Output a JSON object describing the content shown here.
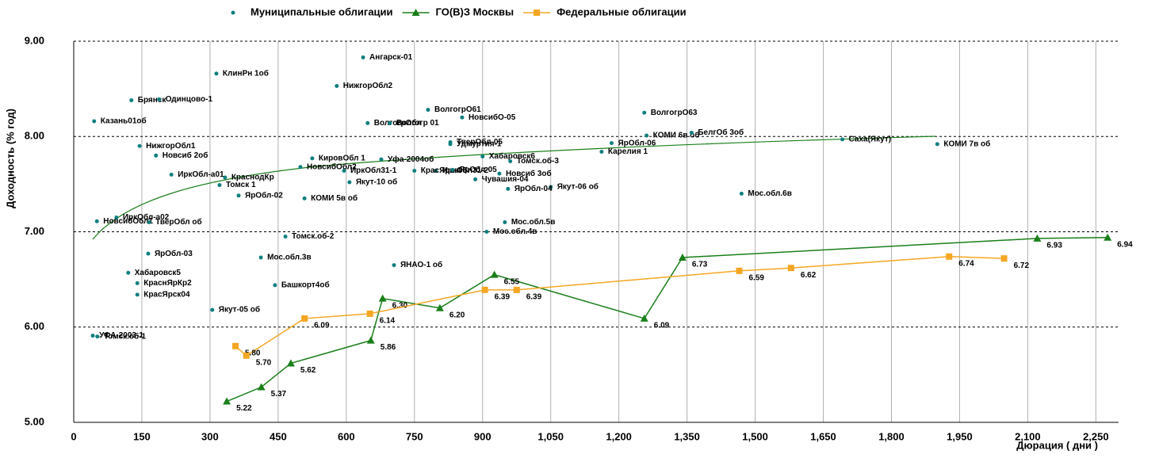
{
  "chart_data": {
    "type": "scatter",
    "xlabel": "Дюрация ( дни )",
    "ylabel": "Доходность (% год)",
    "xlim": [
      0,
      2300
    ],
    "ylim": [
      5,
      9
    ],
    "xticks": [
      0,
      150,
      300,
      450,
      600,
      750,
      900,
      {
        "value": 1050,
        "label": "1,050"
      },
      {
        "value": 1200,
        "label": "1,200"
      },
      {
        "value": 1350,
        "label": "1,350"
      },
      {
        "value": 1500,
        "label": "1,500"
      },
      {
        "value": 1650,
        "label": "1,650"
      },
      {
        "value": 1800,
        "label": "1,800"
      },
      {
        "value": 1950,
        "label": "1,950"
      },
      {
        "value": 2100,
        "label": "2,100"
      },
      {
        "value": 2250,
        "label": "2,250"
      }
    ],
    "yticks": [
      {
        "value": 5,
        "label": "5.00"
      },
      {
        "value": 6,
        "label": "6.00"
      },
      {
        "value": 7,
        "label": "7.00"
      },
      {
        "value": 8,
        "label": "8.00"
      },
      {
        "value": 9,
        "label": "9.00"
      }
    ],
    "grid": true,
    "series": [
      {
        "name": "Муниципальные облигации",
        "type": "scatter",
        "color": "#0f7f7f",
        "x": [
          637,
          314,
          579,
          127,
          188,
          780,
          1256,
          855,
          647,
          696,
          45,
          1261,
          1360,
          829,
          829,
          1692,
          1901,
          145,
          1162,
          1184,
          181,
          900,
          525,
          677,
          961,
          215,
          499,
          797,
          595,
          750,
          834,
          937,
          333,
          884,
          321,
          607,
          1050,
          956,
          1470,
          363,
          508,
          94,
          51,
          166,
          949,
          909,
          466,
          164,
          412,
          705,
          120,
          140,
          443,
          140,
          305,
          42,
          52
        ],
        "values": [
          8.83,
          8.66,
          8.53,
          8.38,
          8.39,
          8.28,
          8.25,
          8.2,
          8.14,
          8.14,
          8.16,
          8.01,
          8.04,
          7.94,
          7.92,
          7.97,
          7.92,
          7.9,
          7.84,
          7.93,
          7.8,
          7.79,
          7.77,
          7.76,
          7.74,
          7.6,
          7.68,
          7.64,
          7.64,
          7.64,
          7.65,
          7.61,
          7.57,
          7.55,
          7.49,
          7.52,
          7.47,
          7.45,
          7.4,
          7.38,
          7.35,
          7.15,
          7.11,
          7.1,
          7.1,
          7,
          6.95,
          6.77,
          6.73,
          6.65,
          6.57,
          6.46,
          6.44,
          6.34,
          6.18,
          5.91,
          5.9
        ],
        "labels": [
          "Ангарск-01",
          "КлинРн 1об",
          "НижгорОбл2",
          "Брянск",
          "Одинцово-1",
          "ВолгогрО61",
          "ВолгогрО63",
          "НовсибО-05",
          "ВолгогрОбл",
          "Волгогр 01",
          "Казань01об",
          "КОМИ 6в об",
          "БелгОб 3об",
          "ТверОбл-05",
          "Удмуртия-1",
          "Саха(Якут)",
          "КОМИ 7в об",
          "НижгорОбл1",
          "Карелия 1",
          "ЯрОбл-06",
          "Новсиб 2об",
          "Хабаровск6",
          "КировОбл 1",
          "Уфа-2004об",
          "Томск.об-3",
          "ИркОбл-а01",
          "НовсибОбл2",
          "ИркОбл31-2",
          "ИркОбл31-1",
          "КрасЯрск05",
          "ЯрОбл-05",
          "Новсиб 3об",
          "КраснодКр",
          "Чувашия-04",
          "Томск 1",
          "Якут-10 об",
          "Якут-06 об",
          "ЯрОбл-04",
          "Мос.обл.6в",
          "ЯрОбл-02",
          "КОМИ 5в об",
          "ИркОбл-а02",
          "НовсибОбл1",
          "ТверОбл об",
          "Мос.обл.5в",
          "Мос.обл.4в",
          "Томск.об-2",
          "ЯрОбл-03",
          "Мос.обл.3в",
          "ЯНАО-1 об",
          "Хабаровск5",
          "КраснЯрКр2",
          "Башкорт4об",
          "КрасЯрск04",
          "Якут-05 об",
          "УФА-2003-1",
          "Томск.об-1"
        ]
      },
      {
        "name": "ГО(В)З Москвы",
        "type": "line",
        "marker": "triangle",
        "color": "#1a7f1a",
        "x": [
          337,
          413,
          478,
          654,
          680,
          806,
          926,
          1256,
          1340,
          2121,
          2276
        ],
        "values": [
          5.22,
          5.37,
          5.62,
          5.86,
          6.3,
          6.2,
          6.55,
          6.09,
          6.73,
          6.93,
          6.94
        ],
        "value_labels": [
          "5.22",
          "5.37",
          "5.62",
          "5.86",
          "6.30",
          "6.20",
          "6.55",
          "6.09",
          "6.73",
          "6.93",
          "6.94"
        ]
      },
      {
        "name": "Федеральные облигации",
        "type": "line",
        "marker": "square",
        "color": "#f5a623",
        "x": [
          356,
          380,
          508,
          652,
          905,
          975,
          1465,
          1579,
          1927,
          2048
        ],
        "values": [
          5.8,
          5.7,
          6.09,
          6.14,
          6.39,
          6.39,
          6.59,
          6.62,
          6.74,
          6.72
        ],
        "value_labels": [
          "5.80",
          "5.70",
          "6.09",
          "6.14",
          "6.39",
          "6.39",
          "6.59",
          "6.62",
          "6.74",
          "6.72"
        ]
      }
    ]
  }
}
